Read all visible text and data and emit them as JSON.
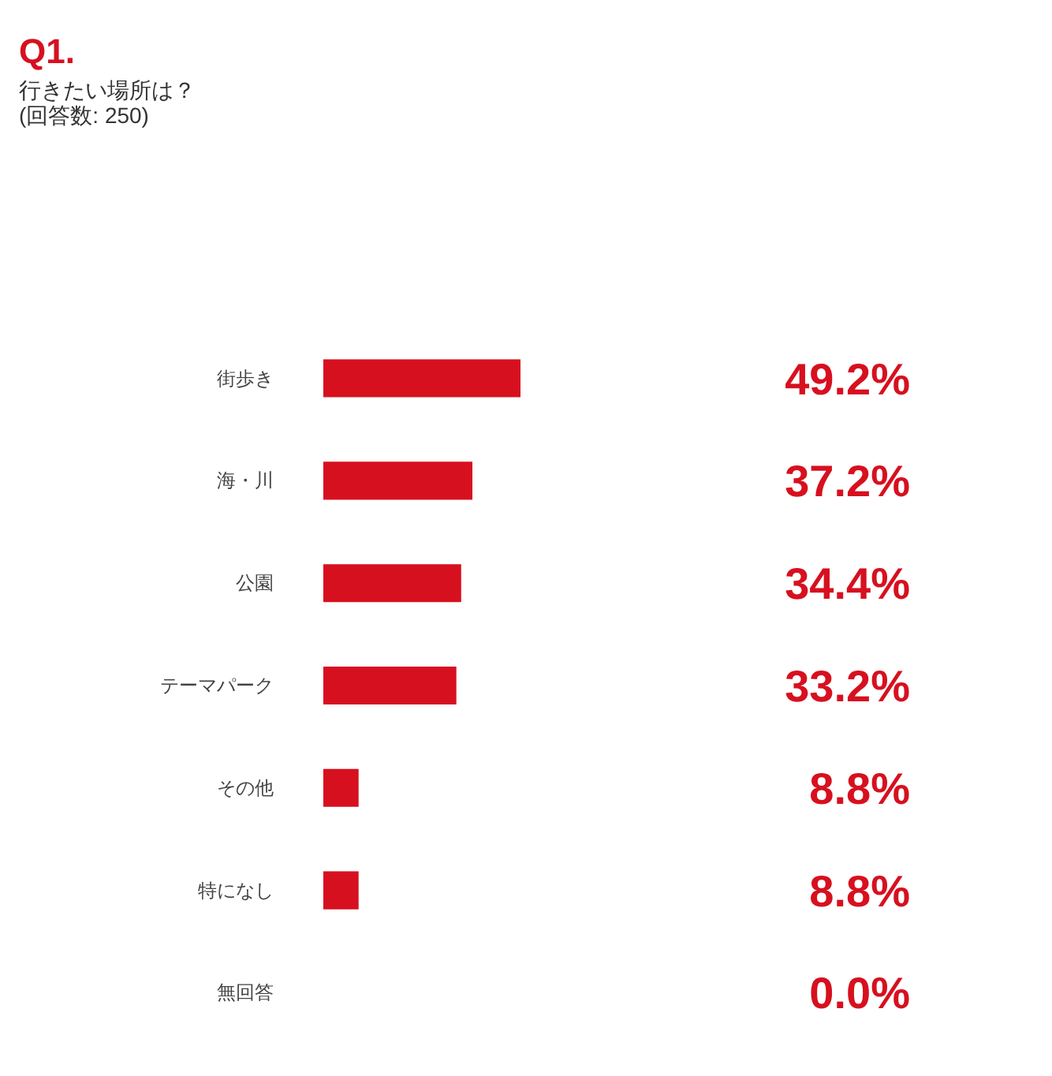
{
  "chart_data": {
    "type": "bar",
    "orientation": "horizontal",
    "title": "Q1.",
    "subtitle": "行きたい場所は？",
    "annotations": [
      "(回答数: 250)"
    ],
    "categories": [
      "街歩き",
      "海・川",
      "公園",
      "テーマパーク",
      "その他",
      "特になし",
      "無回答"
    ],
    "values": [
      49.2,
      37.2,
      34.4,
      33.2,
      8.8,
      8.8,
      0.0
    ],
    "value_labels": [
      "49.2%",
      "37.2%",
      "34.4%",
      "33.2%",
      "8.8%",
      "8.8%",
      "0.0%"
    ],
    "color": "#d7101f",
    "tick_labels": "y"
  }
}
